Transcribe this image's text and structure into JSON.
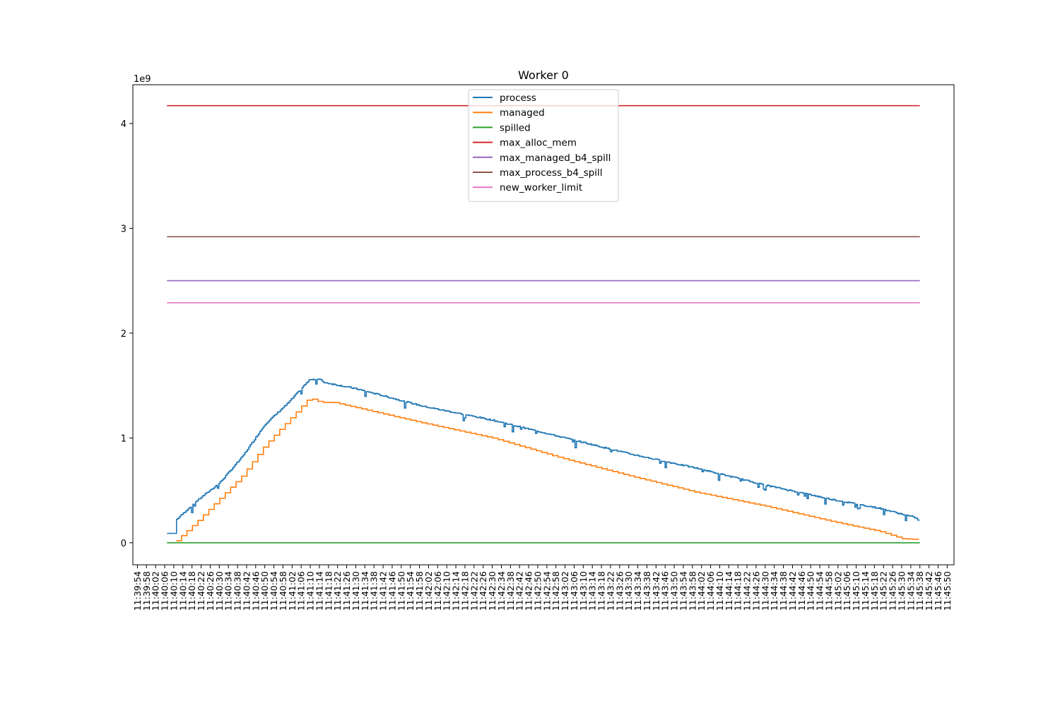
{
  "chart_data": {
    "type": "line",
    "title": "Worker 0",
    "xlabel": "",
    "ylabel": "",
    "y_offset_label": "1e9",
    "y_unit_multiplier": 1000000000,
    "ylim": [
      -0.21,
      4.37
    ],
    "yticks": [
      0,
      1,
      2,
      3,
      4
    ],
    "xlim": [
      "11:39:52",
      "11:45:53"
    ],
    "x_tick_start": "11:39:54",
    "x_tick_end": "11:45:50",
    "x_tick_step_seconds": 4,
    "grid": false,
    "legend_position": "upper center",
    "data_start": "11:40:07",
    "data_end": "11:45:38",
    "series": [
      {
        "name": "process",
        "color": "#1f77b4",
        "step": true,
        "jitter": true,
        "points": [
          [
            "11:40:07",
            0.09
          ],
          [
            "11:40:11",
            0.09
          ],
          [
            "11:40:11",
            0.22
          ],
          [
            "11:40:20",
            0.4
          ],
          [
            "11:40:30",
            0.57
          ],
          [
            "11:40:40",
            0.82
          ],
          [
            "11:40:50",
            1.13
          ],
          [
            "11:41:00",
            1.33
          ],
          [
            "11:41:08",
            1.52
          ],
          [
            "11:41:10",
            1.56
          ],
          [
            "11:41:14",
            1.56
          ],
          [
            "11:41:16",
            1.53
          ],
          [
            "11:41:30",
            1.47
          ],
          [
            "11:42:00",
            1.3
          ],
          [
            "11:42:30",
            1.17
          ],
          [
            "11:43:00",
            1.01
          ],
          [
            "11:43:30",
            0.85
          ],
          [
            "11:44:00",
            0.71
          ],
          [
            "11:44:30",
            0.55
          ],
          [
            "11:45:00",
            0.41
          ],
          [
            "11:45:20",
            0.33
          ],
          [
            "11:45:36",
            0.24
          ],
          [
            "11:45:38",
            0.2
          ]
        ]
      },
      {
        "name": "managed",
        "color": "#ff7f0e",
        "step": true,
        "jitter": false,
        "points": [
          [
            "11:40:11",
            0.0
          ],
          [
            "11:40:11",
            0.02
          ],
          [
            "11:40:20",
            0.2
          ],
          [
            "11:40:30",
            0.42
          ],
          [
            "11:40:40",
            0.64
          ],
          [
            "11:40:50",
            0.93
          ],
          [
            "11:41:00",
            1.16
          ],
          [
            "11:41:09",
            1.37
          ],
          [
            "11:41:12",
            1.37
          ],
          [
            "11:41:14",
            1.34
          ],
          [
            "11:41:20",
            1.34
          ],
          [
            "11:42:00",
            1.14
          ],
          [
            "11:42:30",
            1.0
          ],
          [
            "11:43:00",
            0.81
          ],
          [
            "11:43:30",
            0.64
          ],
          [
            "11:44:00",
            0.48
          ],
          [
            "11:44:30",
            0.35
          ],
          [
            "11:45:00",
            0.2
          ],
          [
            "11:45:20",
            0.11
          ],
          [
            "11:45:30",
            0.04
          ],
          [
            "11:45:38",
            0.03
          ]
        ]
      },
      {
        "name": "spilled",
        "color": "#2ca02c",
        "step": false,
        "jitter": false,
        "points": [
          [
            "11:40:07",
            0.0
          ],
          [
            "11:45:38",
            0.0
          ]
        ]
      },
      {
        "name": "max_alloc_mem",
        "color": "#d62728",
        "step": false,
        "jitter": false,
        "points": [
          [
            "11:40:07",
            4.17
          ],
          [
            "11:45:38",
            4.17
          ]
        ]
      },
      {
        "name": "max_managed_b4_spill",
        "color": "#9467bd",
        "step": false,
        "jitter": false,
        "points": [
          [
            "11:40:07",
            2.5
          ],
          [
            "11:45:38",
            2.5
          ]
        ]
      },
      {
        "name": "max_process_b4_spill",
        "color": "#8c564b",
        "step": false,
        "jitter": false,
        "points": [
          [
            "11:40:07",
            2.92
          ],
          [
            "11:45:38",
            2.92
          ]
        ]
      },
      {
        "name": "new_worker_limit",
        "color": "#e377c2",
        "step": false,
        "jitter": false,
        "points": [
          [
            "11:40:07",
            2.29
          ],
          [
            "11:45:38",
            2.29
          ]
        ]
      }
    ]
  }
}
